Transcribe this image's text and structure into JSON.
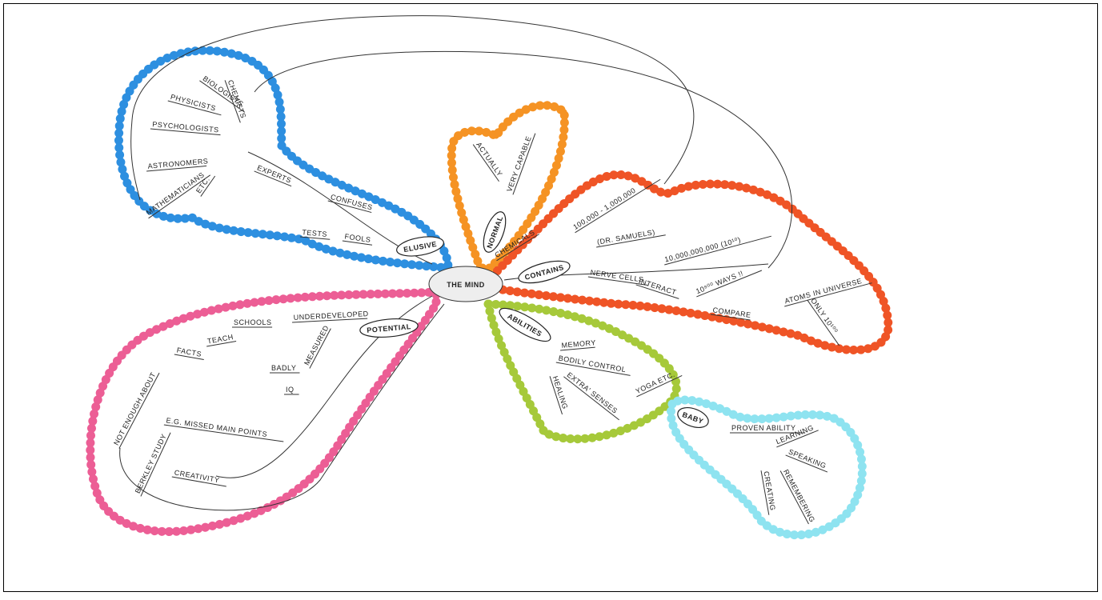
{
  "center": "THE MIND",
  "branches": [
    {
      "node": "ELUSIVE",
      "items": [
        "CHEMISTS",
        "BIOLOGISTS",
        "PHYSICISTS",
        "PSYCHOLOGISTS",
        "ASTRONOMERS",
        "MATHEMATICIANS",
        "ETC.",
        "EXPERTS",
        "CONFUSES",
        "FOOLS",
        "TESTS"
      ]
    },
    {
      "node": "NORMAL",
      "items": [
        "ACTUALLY",
        "VERY CAPABLE"
      ]
    },
    {
      "node": "CONTAINS",
      "items": [
        "CHEMICALS",
        "100,000 - 1,000,000",
        "(DR. SAMUELS)",
        "NERVE CELLS",
        "10,000,000,000 (10¹⁰)",
        "INTERACT",
        "10⁸⁰⁰ WAYS !!",
        "COMPARE",
        "ATOMS IN UNIVERSE",
        "ONLY 10¹⁰⁰"
      ]
    },
    {
      "node": "ABILITIES",
      "items": [
        "MEMORY",
        "BODILY CONTROL",
        "YOGA ETC.",
        "EXTRA' SENSES",
        "HEALING"
      ]
    },
    {
      "node": "BABY",
      "items": [
        "PROVEN ABILITY",
        "LEARNING",
        "SPEAKING",
        "REMEMBERING",
        "CREATING"
      ]
    },
    {
      "node": "POTENTIAL",
      "items": [
        "UNDERDEVELOPED",
        "SCHOOLS",
        "TEACH",
        "FACTS",
        "NOT ENOUGH ABOUT",
        "MEASURED",
        "BADLY",
        "IQ",
        "E.G. MISSED MAIN POINTS",
        "BERKLEY STUDY",
        "CREATIVITY"
      ]
    }
  ]
}
